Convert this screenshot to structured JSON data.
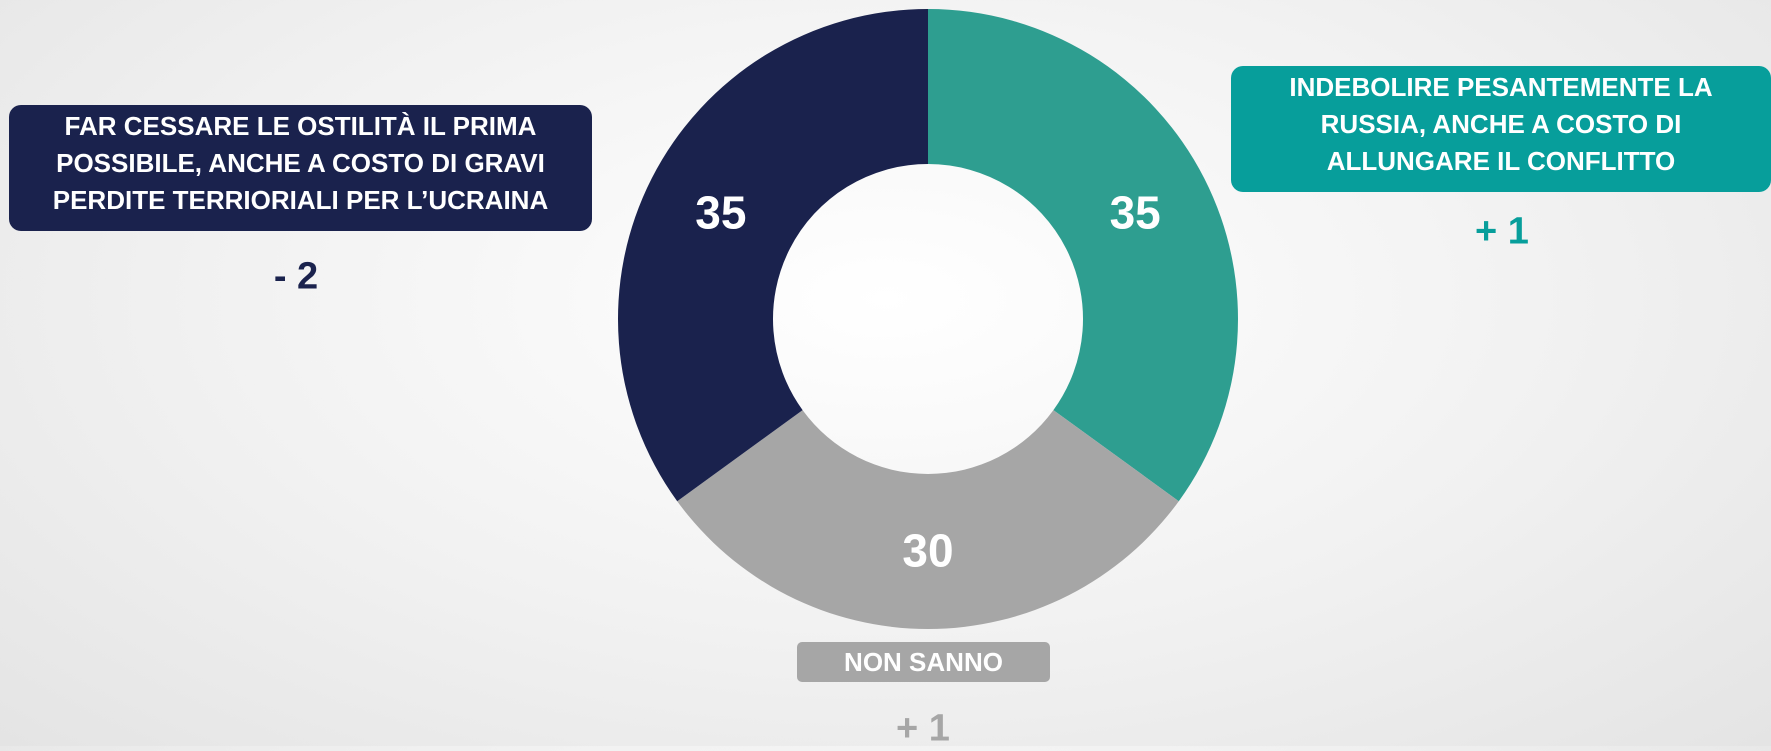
{
  "chart_data": {
    "type": "donut",
    "categories": [
      "INDEBOLIRE PESANTEMENTE LA RUSSIA, ANCHE A COSTO DI ALLUNGARE IL CONFLITTO",
      "NON SANNO",
      "FAR CESSARE LE OSTILITÀ IL PRIMA POSSIBILE, ANCHE A COSTO DI GRAVI PERDITE TERRIORIALI PER L’UCRAINA"
    ],
    "values": [
      35,
      30,
      35
    ],
    "colors": [
      "#2e9e90",
      "#a6a6a6",
      "#1a224d"
    ],
    "label_colors": [
      "#079e9b",
      "#a6a6a6",
      "#1a224d"
    ],
    "changes": [
      "+ 1",
      "+ 1",
      "- 2"
    ]
  }
}
